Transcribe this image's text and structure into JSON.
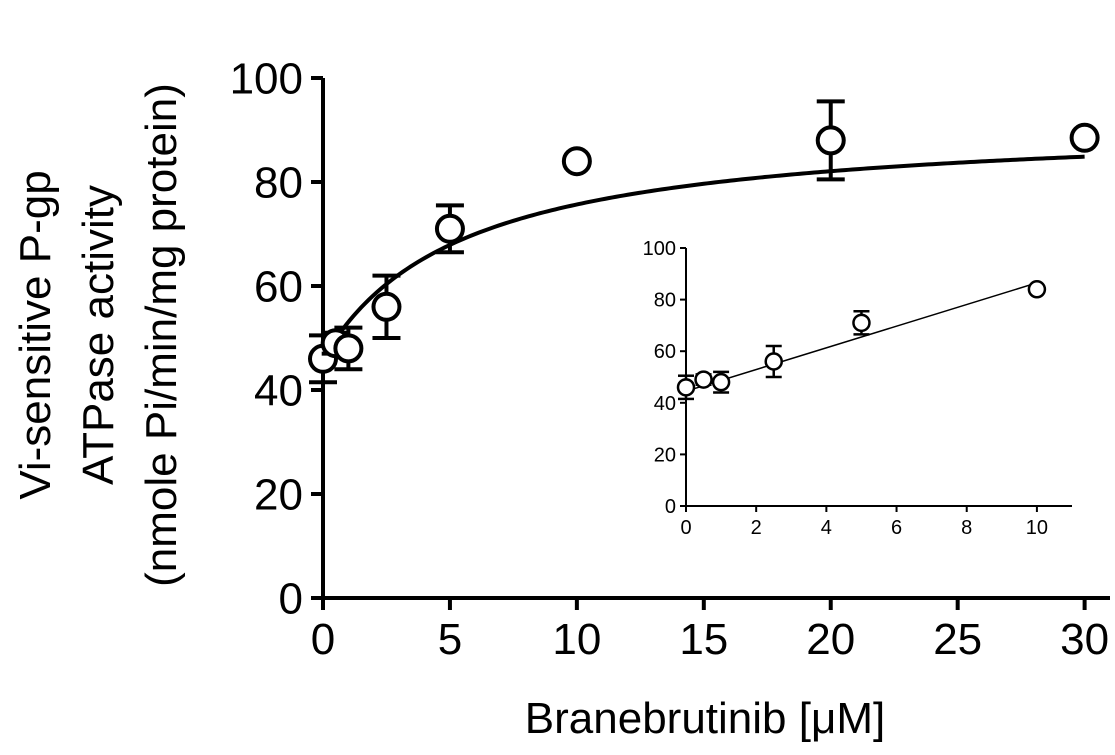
{
  "chart_data": [
    {
      "type": "scatter",
      "panel": "main",
      "title": "",
      "xlabel": "Branebrutinib [μM]",
      "ylabel_lines": [
        "Vi-sensitive P-gp",
        "ATPase activity",
        "(nmole Pi/min/mg protein)"
      ],
      "xlim": [
        0,
        31
      ],
      "ylim": [
        0,
        100
      ],
      "xticks": [
        0,
        5,
        10,
        15,
        20,
        25,
        30
      ],
      "yticks": [
        0,
        20,
        40,
        60,
        80,
        100
      ],
      "grid": false,
      "marker": "open-circle",
      "series": [
        {
          "points": [
            {
              "x": 0,
              "y": 46,
              "err": 4.5
            },
            {
              "x": 0.5,
              "y": 49,
              "err": 2
            },
            {
              "x": 1,
              "y": 48,
              "err": 4
            },
            {
              "x": 2.5,
              "y": 56,
              "err": 6
            },
            {
              "x": 5,
              "y": 71,
              "err": 4.5
            },
            {
              "x": 10,
              "y": 84,
              "err": 0
            },
            {
              "x": 20,
              "y": 88,
              "err": 7.5
            },
            {
              "x": 30,
              "y": 88.5,
              "err": 0
            }
          ]
        }
      ],
      "fit": {
        "type": "hyperbolic",
        "baseline": 46,
        "vmax_increment": 46,
        "km": 5.5,
        "color": "#000000"
      }
    },
    {
      "type": "scatter",
      "panel": "inset",
      "title": "",
      "xlim": [
        0,
        11
      ],
      "ylim": [
        0,
        100
      ],
      "xticks": [
        0,
        2,
        4,
        6,
        8,
        10
      ],
      "yticks": [
        0,
        20,
        40,
        60,
        80,
        100
      ],
      "grid": false,
      "marker": "open-circle",
      "series": [
        {
          "points": [
            {
              "x": 0,
              "y": 46,
              "err": 4.5
            },
            {
              "x": 0.5,
              "y": 49,
              "err": 2
            },
            {
              "x": 1,
              "y": 48,
              "err": 4
            },
            {
              "x": 2.5,
              "y": 56,
              "err": 6
            },
            {
              "x": 5,
              "y": 71,
              "err": 4.5
            },
            {
              "x": 10,
              "y": 84,
              "err": 0
            }
          ]
        }
      ],
      "fit": {
        "type": "linear",
        "x_start": 0,
        "x_end": 10,
        "y_start": 44.5,
        "y_end": 86.5
      }
    }
  ]
}
